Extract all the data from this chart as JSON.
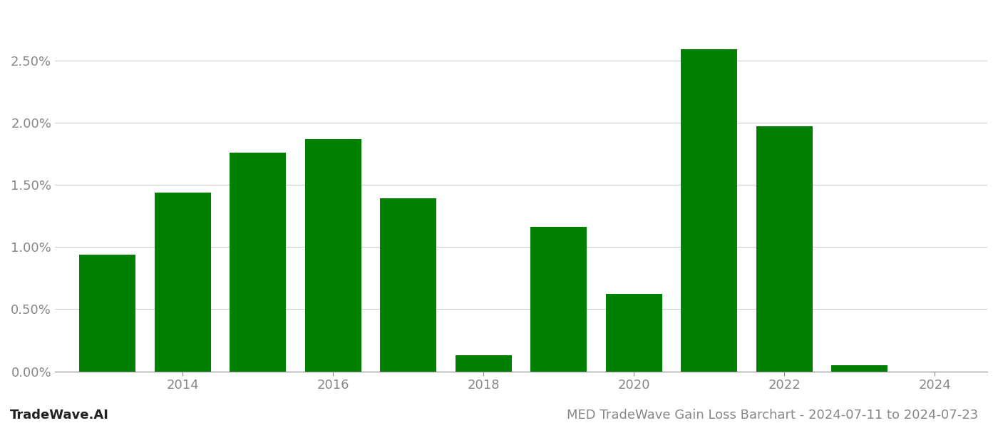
{
  "years": [
    2013,
    2014,
    2015,
    2016,
    2017,
    2018,
    2019,
    2020,
    2021,
    2022,
    2023
  ],
  "values": [
    0.0094,
    0.0144,
    0.0176,
    0.0187,
    0.0139,
    0.0013,
    0.0116,
    0.0062,
    0.0259,
    0.0197,
    0.0005
  ],
  "bar_color": "#008000",
  "background_color": "#ffffff",
  "grid_color": "#cccccc",
  "axis_color": "#888888",
  "tick_label_color": "#888888",
  "title": "MED TradeWave Gain Loss Barchart - 2024-07-11 to 2024-07-23",
  "watermark": "TradeWave.AI",
  "ylim": [
    0.0,
    0.029
  ],
  "yticks": [
    0.0,
    0.005,
    0.01,
    0.015,
    0.02,
    0.025
  ],
  "ytick_labels": [
    "0.00%",
    "0.50%",
    "1.00%",
    "1.50%",
    "2.00%",
    "2.50%"
  ],
  "xtick_positions": [
    2014,
    2016,
    2018,
    2020,
    2022,
    2024
  ],
  "xtick_labels": [
    "2014",
    "2016",
    "2018",
    "2020",
    "2022",
    "2024"
  ],
  "tick_fontsize": 13,
  "title_fontsize": 13,
  "watermark_fontsize": 13,
  "bar_width": 0.75
}
